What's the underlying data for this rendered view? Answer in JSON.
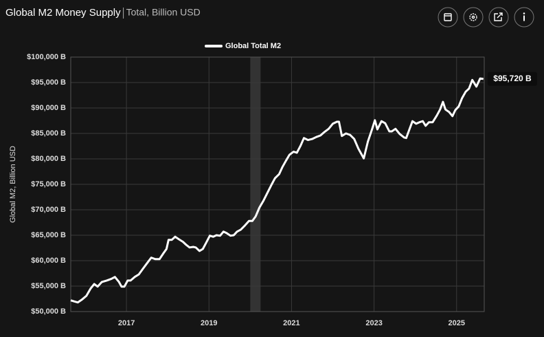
{
  "chart_data": {
    "type": "line",
    "title": "Global M2 Money Supply",
    "subtitle": "Total, Billion USD",
    "ylabel": "Global M2, Billion USD",
    "x": [
      2015.65,
      2015.73,
      2015.82,
      2015.93,
      2016.03,
      2016.13,
      2016.22,
      2016.3,
      2016.4,
      2016.52,
      2016.63,
      2016.72,
      2016.82,
      2016.88,
      2016.95,
      2017.03,
      2017.1,
      2017.2,
      2017.3,
      2017.4,
      2017.5,
      2017.6,
      2017.7,
      2017.8,
      2017.9,
      2017.97,
      2018.02,
      2018.1,
      2018.18,
      2018.27,
      2018.37,
      2018.45,
      2018.53,
      2018.62,
      2018.68,
      2018.77,
      2018.85,
      2018.93,
      2019.02,
      2019.1,
      2019.18,
      2019.27,
      2019.35,
      2019.43,
      2019.52,
      2019.6,
      2019.68,
      2019.77,
      2019.87,
      2019.97,
      2020.05,
      2020.13,
      2020.22,
      2020.32,
      2020.42,
      2020.52,
      2020.6,
      2020.7,
      2020.78,
      2020.87,
      2020.95,
      2021.05,
      2021.13,
      2021.22,
      2021.3,
      2021.4,
      2021.5,
      2021.6,
      2021.7,
      2021.8,
      2021.9,
      2022.0,
      2022.1,
      2022.15,
      2022.22,
      2022.32,
      2022.42,
      2022.52,
      2022.62,
      2022.75,
      2022.85,
      2022.95,
      2023.02,
      2023.08,
      2023.18,
      2023.27,
      2023.37,
      2023.43,
      2023.52,
      2023.62,
      2023.73,
      2023.78,
      2023.87,
      2023.93,
      2024.02,
      2024.1,
      2024.18,
      2024.25,
      2024.33,
      2024.42,
      2024.52,
      2024.6,
      2024.67,
      2024.73,
      2024.82,
      2024.9,
      2024.97,
      2025.05,
      2025.13,
      2025.22,
      2025.3,
      2025.38,
      2025.48,
      2025.57,
      2025.65
    ],
    "series": [
      {
        "name": "Global Total M2",
        "color": "#ffffff",
        "values": [
          52200,
          52000,
          51800,
          52400,
          53100,
          54500,
          55400,
          54900,
          55800,
          56100,
          56400,
          56800,
          55800,
          54900,
          54900,
          56100,
          56100,
          56800,
          57300,
          58400,
          59500,
          60600,
          60300,
          60300,
          61500,
          62300,
          64100,
          64100,
          64700,
          64200,
          63700,
          63100,
          62600,
          62700,
          62600,
          61900,
          62300,
          63500,
          64900,
          64700,
          65000,
          64900,
          65700,
          65400,
          64900,
          65000,
          65700,
          66100,
          66900,
          67800,
          67800,
          68700,
          70400,
          71800,
          73400,
          75000,
          76200,
          77000,
          78400,
          79700,
          80800,
          81400,
          81200,
          82600,
          84100,
          83700,
          83900,
          84300,
          84600,
          85300,
          85900,
          86900,
          87300,
          87300,
          84500,
          85000,
          84700,
          83900,
          82000,
          80100,
          83400,
          85800,
          87600,
          85800,
          87400,
          87000,
          85400,
          85400,
          85900,
          84900,
          84200,
          84100,
          86100,
          87400,
          86900,
          87200,
          87400,
          86500,
          87200,
          87200,
          88500,
          89700,
          91200,
          89700,
          89200,
          88400,
          89600,
          90300,
          91900,
          93200,
          93800,
          95500,
          94200,
          95800,
          95720
        ],
        "value_labels": [
          null,
          null,
          null,
          null,
          null,
          null,
          null,
          null,
          null,
          null,
          null,
          null,
          null,
          null,
          null,
          null,
          null,
          null,
          null,
          null,
          null,
          null,
          null,
          null,
          null,
          null,
          null,
          null,
          null,
          null,
          null,
          null,
          null,
          null,
          null,
          null,
          null,
          null,
          null,
          null,
          null,
          null,
          null,
          null,
          null,
          null,
          null,
          null,
          null,
          null,
          null,
          null,
          null,
          null,
          null,
          null,
          null,
          null,
          null,
          null,
          null,
          null,
          null,
          null,
          null,
          null,
          null,
          null,
          null,
          null,
          null,
          null,
          null,
          null,
          null,
          null,
          null,
          null,
          null,
          null,
          null,
          null,
          null,
          null,
          null,
          null,
          null,
          null,
          null,
          null,
          null,
          null,
          null,
          null,
          null,
          null,
          null,
          null,
          null,
          null,
          null,
          null,
          null,
          null,
          null,
          null,
          null,
          null,
          null,
          null,
          null,
          null,
          null,
          null,
          "$95,720 B"
        ]
      }
    ],
    "highlight": [
      2020.0,
      2020.25
    ],
    "xlim": [
      2015.65,
      2025.67
    ],
    "xticks": [
      2017,
      2019,
      2021,
      2023,
      2025
    ],
    "ylim": [
      50000,
      100000
    ],
    "yticks": [
      {
        "value": 50000,
        "label": "$50,000 B"
      },
      {
        "value": 55000,
        "label": "$55,000 B"
      },
      {
        "value": 60000,
        "label": "$60,000 B"
      },
      {
        "value": 65000,
        "label": "$65,000 B"
      },
      {
        "value": 70000,
        "label": "$70,000 B"
      },
      {
        "value": 75000,
        "label": "$75,000 B"
      },
      {
        "value": 80000,
        "label": "$80,000 B"
      },
      {
        "value": 85000,
        "label": "$85,000 B"
      },
      {
        "value": 90000,
        "label": "$90,000 B"
      },
      {
        "value": 95000,
        "label": "$95,000 B"
      },
      {
        "value": 100000,
        "label": "$100,000 B"
      }
    ],
    "grid": true,
    "legend": "top"
  }
}
